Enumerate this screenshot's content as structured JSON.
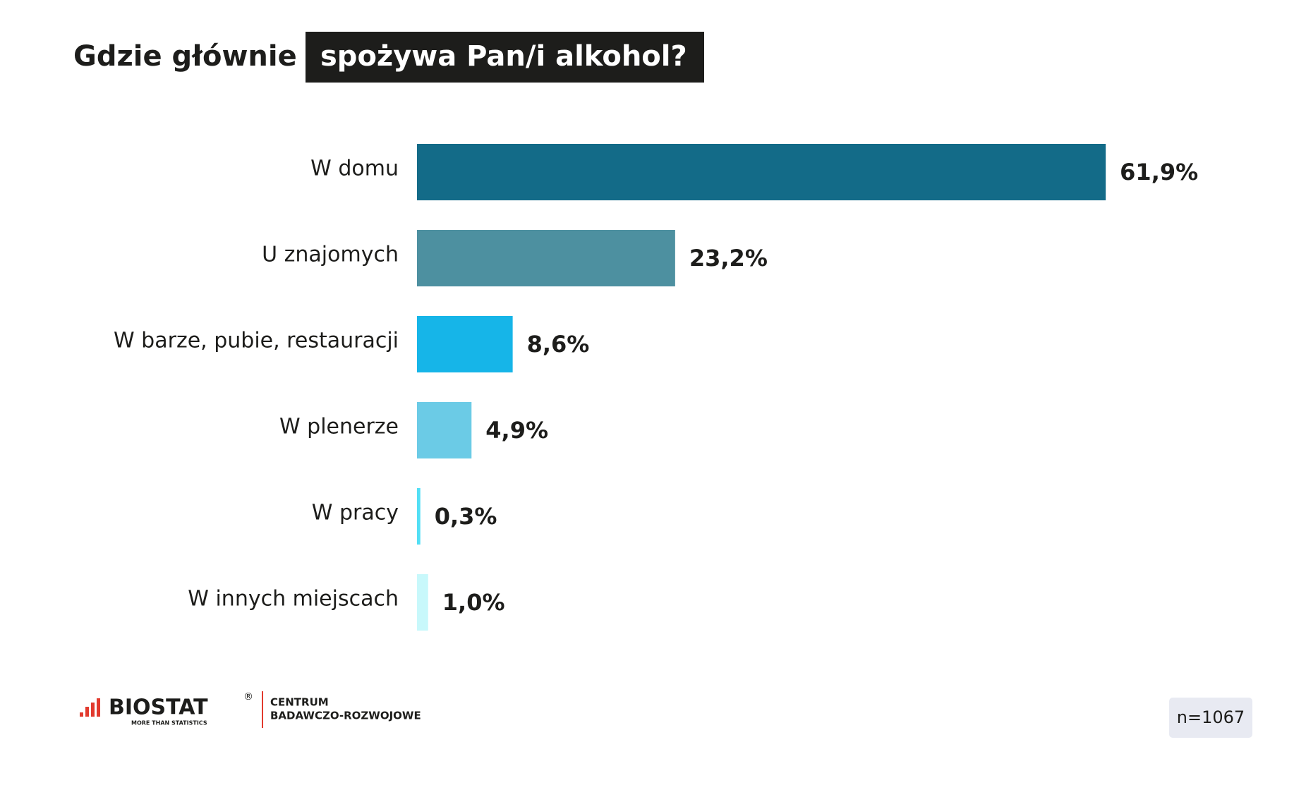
{
  "chart_data": {
    "type": "bar",
    "orientation": "horizontal",
    "title": "Gdzie głównie",
    "title_highlight": "spożywa Pan/i alkohol?",
    "categories": [
      "W domu",
      "U znajomych",
      "W barze, pubie, restauracji",
      "W plenerze",
      "W pracy",
      "W innych miejscach"
    ],
    "values": [
      61.9,
      23.2,
      8.6,
      4.9,
      0.3,
      1.0
    ],
    "value_labels": [
      "61,9%",
      "23,2%",
      "8,6%",
      "4,9%",
      "0,3%",
      "1,0%"
    ],
    "colors": [
      "#136b88",
      "#4d90a0",
      "#16b5e8",
      "#6bcbe6",
      "#52dff5",
      "#c8f8fb"
    ],
    "sample_size": "n=1067",
    "logo": {
      "name": "BIOSTAT",
      "mark": "®",
      "tagline": "MORE THAN STATISTICS",
      "unit_line1": "CENTRUM",
      "unit_line2": "BADAWCZO-ROZWOJOWE"
    }
  }
}
